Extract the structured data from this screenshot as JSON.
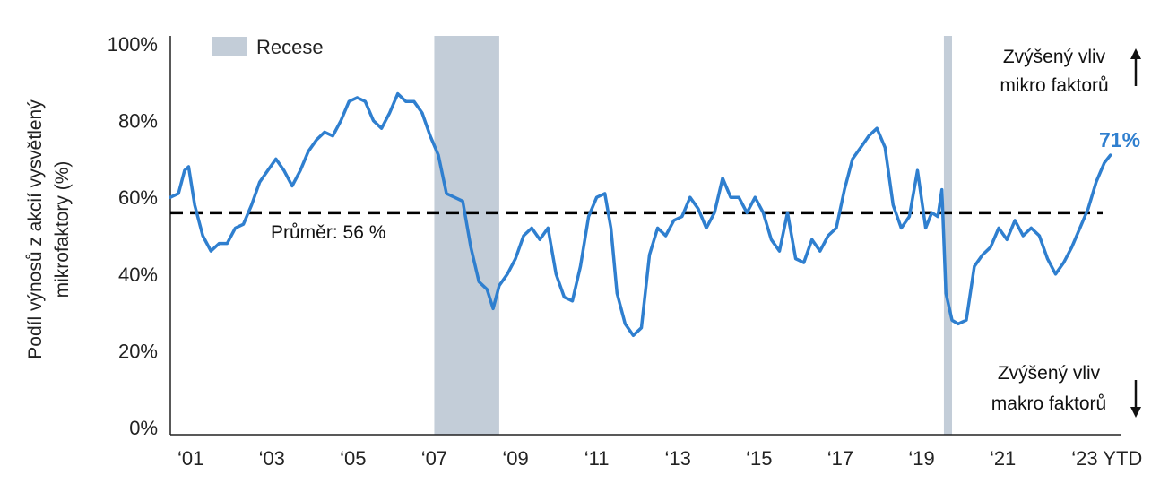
{
  "chart_data": {
    "type": "line",
    "ylabel": "Podíl výnosů z akcií vysvětlený mikrofaktory (%)",
    "ylabel_lines": [
      "Podíl výnosů z akcií vysvětlený",
      "mikrofaktory (%)"
    ],
    "ylim": [
      0,
      100
    ],
    "yticks": [
      0,
      20,
      40,
      60,
      80,
      100
    ],
    "ytick_labels": [
      "0%",
      "20%",
      "40%",
      "60%",
      "80%",
      "100%"
    ],
    "xlim": [
      2000.5,
      2023.9
    ],
    "xticks": [
      2001,
      2003,
      2005,
      2007,
      2009,
      2011,
      2013,
      2015,
      2017,
      2019,
      2021,
      2023
    ],
    "xtick_labels": [
      "‘01",
      "‘03",
      "‘05",
      "‘07",
      "‘09",
      "‘11",
      "‘13",
      "‘15",
      "‘17",
      "‘19",
      "‘21",
      "‘23 YTD"
    ],
    "legend": {
      "label": "Recese",
      "placement": "top-left",
      "color": "#c3cdd8"
    },
    "recessions": [
      {
        "start": 2007.0,
        "end": 2008.6
      },
      {
        "start": 2019.55,
        "end": 2019.75
      }
    ],
    "average": {
      "value": 56,
      "label": "Průměr: 56 %"
    },
    "annotations": {
      "micro": [
        "Zvýšený vliv",
        "mikro faktorů"
      ],
      "macro": [
        "Zvýšený vliv",
        "makro faktorů"
      ],
      "last_value_label": "71%"
    },
    "colors": {
      "line": "#2f7fcf",
      "average": "#000000",
      "recession": "#c3cdd8",
      "axis": "#222222",
      "text": "#222222"
    },
    "series": [
      {
        "values": [
          [
            2000.5,
            60
          ],
          [
            2000.7,
            61
          ],
          [
            2000.85,
            67
          ],
          [
            2000.95,
            68
          ],
          [
            2001.1,
            58
          ],
          [
            2001.3,
            50
          ],
          [
            2001.5,
            46
          ],
          [
            2001.7,
            48
          ],
          [
            2001.9,
            48
          ],
          [
            2002.1,
            52
          ],
          [
            2002.3,
            53
          ],
          [
            2002.5,
            58
          ],
          [
            2002.7,
            64
          ],
          [
            2002.9,
            67
          ],
          [
            2003.1,
            70
          ],
          [
            2003.3,
            67
          ],
          [
            2003.5,
            63
          ],
          [
            2003.7,
            67
          ],
          [
            2003.9,
            72
          ],
          [
            2004.1,
            75
          ],
          [
            2004.3,
            77
          ],
          [
            2004.5,
            76
          ],
          [
            2004.7,
            80
          ],
          [
            2004.9,
            85
          ],
          [
            2005.1,
            86
          ],
          [
            2005.3,
            85
          ],
          [
            2005.5,
            80
          ],
          [
            2005.7,
            78
          ],
          [
            2005.9,
            82
          ],
          [
            2006.1,
            87
          ],
          [
            2006.3,
            85
          ],
          [
            2006.5,
            85
          ],
          [
            2006.7,
            82
          ],
          [
            2006.9,
            76
          ],
          [
            2007.1,
            71
          ],
          [
            2007.3,
            61
          ],
          [
            2007.5,
            60
          ],
          [
            2007.7,
            59
          ],
          [
            2007.9,
            47
          ],
          [
            2008.1,
            38
          ],
          [
            2008.3,
            36
          ],
          [
            2008.45,
            31
          ],
          [
            2008.6,
            37
          ],
          [
            2008.8,
            40
          ],
          [
            2009.0,
            44
          ],
          [
            2009.2,
            50
          ],
          [
            2009.4,
            52
          ],
          [
            2009.6,
            49
          ],
          [
            2009.8,
            52
          ],
          [
            2010.0,
            40
          ],
          [
            2010.2,
            34
          ],
          [
            2010.4,
            33
          ],
          [
            2010.6,
            42
          ],
          [
            2010.8,
            55
          ],
          [
            2011.0,
            60
          ],
          [
            2011.2,
            61
          ],
          [
            2011.35,
            52
          ],
          [
            2011.5,
            35
          ],
          [
            2011.7,
            27
          ],
          [
            2011.9,
            24
          ],
          [
            2012.1,
            26
          ],
          [
            2012.3,
            45
          ],
          [
            2012.5,
            52
          ],
          [
            2012.7,
            50
          ],
          [
            2012.9,
            54
          ],
          [
            2013.1,
            55
          ],
          [
            2013.3,
            60
          ],
          [
            2013.5,
            57
          ],
          [
            2013.7,
            52
          ],
          [
            2013.9,
            56
          ],
          [
            2014.1,
            65
          ],
          [
            2014.3,
            60
          ],
          [
            2014.5,
            60
          ],
          [
            2014.7,
            56
          ],
          [
            2014.9,
            60
          ],
          [
            2015.1,
            56
          ],
          [
            2015.3,
            49
          ],
          [
            2015.5,
            46
          ],
          [
            2015.7,
            56
          ],
          [
            2015.9,
            44
          ],
          [
            2016.1,
            43
          ],
          [
            2016.3,
            49
          ],
          [
            2016.5,
            46
          ],
          [
            2016.7,
            50
          ],
          [
            2016.9,
            52
          ],
          [
            2017.1,
            62
          ],
          [
            2017.3,
            70
          ],
          [
            2017.5,
            73
          ],
          [
            2017.7,
            76
          ],
          [
            2017.9,
            78
          ],
          [
            2018.1,
            73
          ],
          [
            2018.3,
            58
          ],
          [
            2018.5,
            52
          ],
          [
            2018.7,
            55
          ],
          [
            2018.9,
            67
          ],
          [
            2019.1,
            52
          ],
          [
            2019.25,
            56
          ],
          [
            2019.4,
            55
          ],
          [
            2019.5,
            62
          ],
          [
            2019.6,
            35
          ],
          [
            2019.75,
            28
          ],
          [
            2019.9,
            27
          ],
          [
            2020.1,
            28
          ],
          [
            2020.3,
            42
          ],
          [
            2020.5,
            45
          ],
          [
            2020.7,
            47
          ],
          [
            2020.9,
            52
          ],
          [
            2021.1,
            49
          ],
          [
            2021.3,
            54
          ],
          [
            2021.5,
            50
          ],
          [
            2021.7,
            52
          ],
          [
            2021.9,
            50
          ],
          [
            2022.1,
            44
          ],
          [
            2022.3,
            40
          ],
          [
            2022.5,
            43
          ],
          [
            2022.7,
            47
          ],
          [
            2022.9,
            52
          ],
          [
            2023.1,
            57
          ],
          [
            2023.3,
            64
          ],
          [
            2023.5,
            69
          ],
          [
            2023.65,
            71
          ]
        ]
      }
    ]
  }
}
